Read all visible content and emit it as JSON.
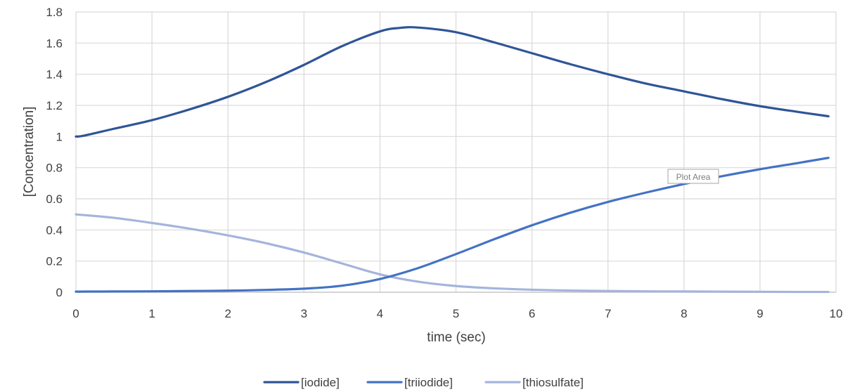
{
  "chart_data": {
    "type": "line",
    "title": "",
    "xlabel": "time (sec)",
    "ylabel": "[Concentration]",
    "xlim": [
      0,
      10
    ],
    "ylim": [
      0,
      1.8
    ],
    "xticks": [
      0,
      1,
      2,
      3,
      4,
      5,
      6,
      7,
      8,
      9,
      10
    ],
    "yticks": [
      0,
      0.2,
      0.4,
      0.6,
      0.8,
      1,
      1.2,
      1.4,
      1.6,
      1.8
    ],
    "grid": true,
    "legend_position": "bottom",
    "tooltip": "Plot Area",
    "series": [
      {
        "name": "[iodide]",
        "color": "#2f5597",
        "x": [
          0,
          0.1,
          0.5,
          1,
          1.5,
          2,
          2.5,
          3,
          3.5,
          4,
          4.25,
          4.5,
          5,
          5.5,
          6,
          6.5,
          7,
          7.5,
          8,
          8.5,
          9,
          9.5,
          9.9
        ],
        "y": [
          1.0,
          1.005,
          1.05,
          1.105,
          1.175,
          1.255,
          1.35,
          1.46,
          1.58,
          1.675,
          1.697,
          1.7,
          1.67,
          1.605,
          1.535,
          1.465,
          1.4,
          1.34,
          1.29,
          1.24,
          1.195,
          1.158,
          1.13
        ]
      },
      {
        "name": "[triiodide]",
        "color": "#4472c4",
        "x": [
          0,
          0.5,
          1,
          1.5,
          2,
          2.5,
          3,
          3.5,
          4,
          4.5,
          5,
          5.5,
          6,
          6.5,
          7,
          7.5,
          8,
          8.5,
          9,
          9.5,
          9.9
        ],
        "y": [
          0.004,
          0.005,
          0.006,
          0.008,
          0.01,
          0.015,
          0.023,
          0.042,
          0.085,
          0.155,
          0.245,
          0.34,
          0.43,
          0.51,
          0.58,
          0.64,
          0.695,
          0.745,
          0.79,
          0.83,
          0.863
        ]
      },
      {
        "name": "[thiosulfate]",
        "color": "#a5b4dc",
        "x": [
          0,
          0.5,
          1,
          1.5,
          2,
          2.5,
          3,
          3.5,
          4,
          4.5,
          5,
          5.5,
          6,
          6.5,
          7,
          7.5,
          8,
          8.5,
          9,
          9.5,
          9.9
        ],
        "y": [
          0.5,
          0.478,
          0.445,
          0.408,
          0.365,
          0.315,
          0.255,
          0.185,
          0.115,
          0.068,
          0.04,
          0.025,
          0.016,
          0.011,
          0.008,
          0.006,
          0.005,
          0.004,
          0.003,
          0.002,
          0.002
        ]
      }
    ]
  }
}
